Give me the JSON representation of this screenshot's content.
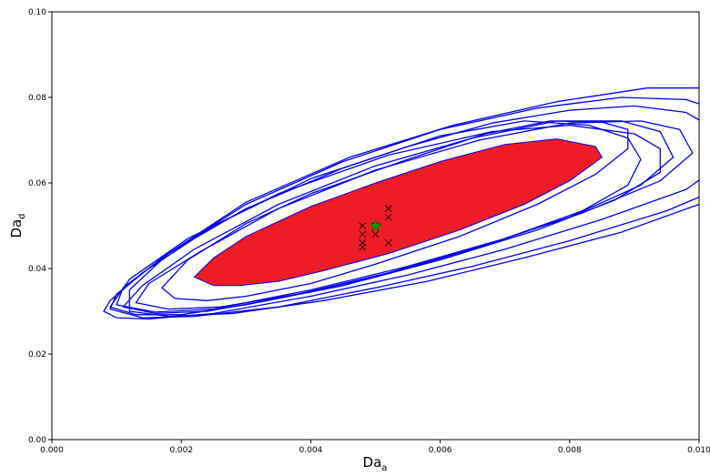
{
  "chart_data": {
    "type": "contour-scatter",
    "xlabel_main": "Da",
    "xlabel_sub": "a",
    "ylabel_main": "Da",
    "ylabel_sub": "d",
    "xlim": [
      0.0,
      0.01
    ],
    "ylim": [
      0.0,
      0.1
    ],
    "x_ticks": [
      0.0,
      0.002,
      0.004,
      0.006,
      0.008,
      0.01
    ],
    "x_tick_labels": [
      "0.000",
      "0.002",
      "0.004",
      "0.006",
      "0.008",
      "0.010"
    ],
    "y_ticks": [
      0.0,
      0.02,
      0.04,
      0.06,
      0.08,
      0.1
    ],
    "y_tick_labels": [
      "0.00",
      "0.02",
      "0.04",
      "0.06",
      "0.08",
      "0.10"
    ],
    "grid": false,
    "colors": {
      "region_fill": "#ee1c25",
      "contour_line": "#0000ee",
      "true_marker": "#00a000",
      "sample_marker": "#000000"
    },
    "filled_region": {
      "points": [
        [
          0.0022,
          0.038
        ],
        [
          0.0025,
          0.036
        ],
        [
          0.0029,
          0.036
        ],
        [
          0.0035,
          0.037
        ],
        [
          0.0042,
          0.0395
        ],
        [
          0.0052,
          0.0435
        ],
        [
          0.0063,
          0.049
        ],
        [
          0.0073,
          0.055
        ],
        [
          0.008,
          0.0605
        ],
        [
          0.0085,
          0.066
        ],
        [
          0.0084,
          0.0685
        ],
        [
          0.0078,
          0.0703
        ],
        [
          0.007,
          0.069
        ],
        [
          0.006,
          0.065
        ],
        [
          0.005,
          0.06
        ],
        [
          0.004,
          0.0545
        ],
        [
          0.003,
          0.0475
        ],
        [
          0.0025,
          0.0425
        ]
      ]
    },
    "contours": [
      {
        "points": [
          [
            0.0017,
            0.0355
          ],
          [
            0.0019,
            0.033
          ],
          [
            0.0024,
            0.0325
          ],
          [
            0.003,
            0.0335
          ],
          [
            0.004,
            0.0365
          ],
          [
            0.005,
            0.041
          ],
          [
            0.0063,
            0.0475
          ],
          [
            0.0075,
            0.055
          ],
          [
            0.0084,
            0.062
          ],
          [
            0.0089,
            0.068
          ],
          [
            0.0089,
            0.0725
          ],
          [
            0.0085,
            0.0742
          ],
          [
            0.0077,
            0.0745
          ],
          [
            0.0067,
            0.0715
          ],
          [
            0.0055,
            0.0655
          ],
          [
            0.004,
            0.0575
          ],
          [
            0.003,
            0.0505
          ],
          [
            0.0021,
            0.042
          ]
        ]
      },
      {
        "points": [
          [
            0.0011,
            0.031
          ],
          [
            0.0016,
            0.0295
          ],
          [
            0.0024,
            0.03
          ],
          [
            0.0035,
            0.033
          ],
          [
            0.005,
            0.038
          ],
          [
            0.0065,
            0.0445
          ],
          [
            0.008,
            0.052
          ],
          [
            0.0091,
            0.0595
          ],
          [
            0.0096,
            0.066
          ],
          [
            0.0094,
            0.072
          ],
          [
            0.0088,
            0.0745
          ],
          [
            0.0078,
            0.0745
          ],
          [
            0.0065,
            0.0705
          ],
          [
            0.005,
            0.064
          ],
          [
            0.0035,
            0.055
          ],
          [
            0.0022,
            0.0445
          ],
          [
            0.0014,
            0.036
          ]
        ]
      },
      {
        "points": [
          [
            0.0013,
            0.032
          ],
          [
            0.0018,
            0.0305
          ],
          [
            0.0026,
            0.031
          ],
          [
            0.0038,
            0.034
          ],
          [
            0.0052,
            0.039
          ],
          [
            0.0067,
            0.0455
          ],
          [
            0.0082,
            0.053
          ],
          [
            0.0094,
            0.0605
          ],
          [
            0.0099,
            0.067
          ],
          [
            0.0097,
            0.0725
          ],
          [
            0.0091,
            0.0745
          ],
          [
            0.008,
            0.074
          ],
          [
            0.0066,
            0.07
          ],
          [
            0.005,
            0.063
          ],
          [
            0.0035,
            0.054
          ],
          [
            0.0023,
            0.044
          ],
          [
            0.0015,
            0.0365
          ]
        ]
      },
      {
        "points": [
          [
            0.0009,
            0.031
          ],
          [
            0.0013,
            0.0292
          ],
          [
            0.002,
            0.0292
          ],
          [
            0.003,
            0.0315
          ],
          [
            0.0045,
            0.036
          ],
          [
            0.006,
            0.042
          ],
          [
            0.0075,
            0.049
          ],
          [
            0.0087,
            0.056
          ],
          [
            0.0094,
            0.0625
          ],
          [
            0.0094,
            0.068
          ],
          [
            0.009,
            0.0715
          ],
          [
            0.008,
            0.0735
          ],
          [
            0.0068,
            0.072
          ],
          [
            0.0052,
            0.0665
          ],
          [
            0.0035,
            0.0575
          ],
          [
            0.0021,
            0.047
          ],
          [
            0.0012,
            0.0375
          ]
        ]
      },
      {
        "points": [
          [
            0.001,
            0.0315
          ],
          [
            0.0016,
            0.0298
          ],
          [
            0.0025,
            0.0305
          ],
          [
            0.004,
            0.035
          ],
          [
            0.0055,
            0.0405
          ],
          [
            0.007,
            0.047
          ],
          [
            0.0082,
            0.0535
          ],
          [
            0.0089,
            0.0595
          ],
          [
            0.0091,
            0.0655
          ],
          [
            0.0089,
            0.0705
          ],
          [
            0.0083,
            0.0735
          ],
          [
            0.0073,
            0.0745
          ],
          [
            0.006,
            0.071
          ],
          [
            0.0045,
            0.0635
          ],
          [
            0.003,
            0.054
          ],
          [
            0.0018,
            0.0435
          ],
          [
            0.0011,
            0.0355
          ]
        ]
      },
      {
        "points": [
          [
            0.0008,
            0.03
          ],
          [
            0.001,
            0.0285
          ],
          [
            0.0015,
            0.0282
          ],
          [
            0.0025,
            0.0295
          ],
          [
            0.004,
            0.0335
          ],
          [
            0.0055,
            0.0385
          ],
          [
            0.007,
            0.0445
          ],
          [
            0.0085,
            0.0515
          ],
          [
            0.0098,
            0.0585
          ],
          [
            0.0104,
            0.065
          ],
          [
            0.0103,
            0.072
          ],
          [
            0.0098,
            0.0765
          ],
          [
            0.009,
            0.078
          ],
          [
            0.008,
            0.077
          ],
          [
            0.0068,
            0.074
          ],
          [
            0.0055,
            0.0685
          ],
          [
            0.004,
            0.061
          ],
          [
            0.0025,
            0.05
          ],
          [
            0.0014,
            0.039
          ],
          [
            0.0009,
            0.0325
          ]
        ]
      },
      {
        "points": [
          [
            0.0009,
            0.0305
          ],
          [
            0.0014,
            0.0285
          ],
          [
            0.0022,
            0.0288
          ],
          [
            0.0035,
            0.031
          ],
          [
            0.005,
            0.0355
          ],
          [
            0.0065,
            0.0405
          ],
          [
            0.008,
            0.0465
          ],
          [
            0.0095,
            0.0535
          ],
          [
            0.0106,
            0.0605
          ],
          [
            0.0109,
            0.0685
          ],
          [
            0.0106,
            0.0755
          ],
          [
            0.0098,
            0.0795
          ],
          [
            0.0088,
            0.08
          ],
          [
            0.0075,
            0.0775
          ],
          [
            0.006,
            0.0725
          ],
          [
            0.0045,
            0.065
          ],
          [
            0.003,
            0.055
          ],
          [
            0.0017,
            0.0425
          ],
          [
            0.001,
            0.034
          ]
        ]
      },
      {
        "points": [
          [
            0.0012,
            0.03
          ],
          [
            0.0018,
            0.0288
          ],
          [
            0.0028,
            0.0295
          ],
          [
            0.0042,
            0.0325
          ],
          [
            0.0058,
            0.037
          ],
          [
            0.0073,
            0.0425
          ],
          [
            0.0088,
            0.0485
          ],
          [
            0.01,
            0.055
          ],
          [
            0.0112,
            0.0625
          ],
          [
            0.0115,
            0.071
          ],
          [
            0.011,
            0.0785
          ],
          [
            0.0102,
            0.0822
          ],
          [
            0.0092,
            0.0822
          ],
          [
            0.0078,
            0.079
          ],
          [
            0.0062,
            0.0735
          ],
          [
            0.0046,
            0.066
          ],
          [
            0.003,
            0.0555
          ],
          [
            0.0018,
            0.0435
          ],
          [
            0.0012,
            0.035
          ]
        ]
      }
    ],
    "true_point": [
      0.005,
      0.05
    ],
    "sample_points": [
      [
        0.0048,
        0.05
      ],
      [
        0.0048,
        0.048
      ],
      [
        0.0048,
        0.046
      ],
      [
        0.0048,
        0.045
      ],
      [
        0.005,
        0.05
      ],
      [
        0.005,
        0.048
      ],
      [
        0.0052,
        0.054
      ],
      [
        0.0052,
        0.052
      ],
      [
        0.0052,
        0.046
      ]
    ]
  }
}
